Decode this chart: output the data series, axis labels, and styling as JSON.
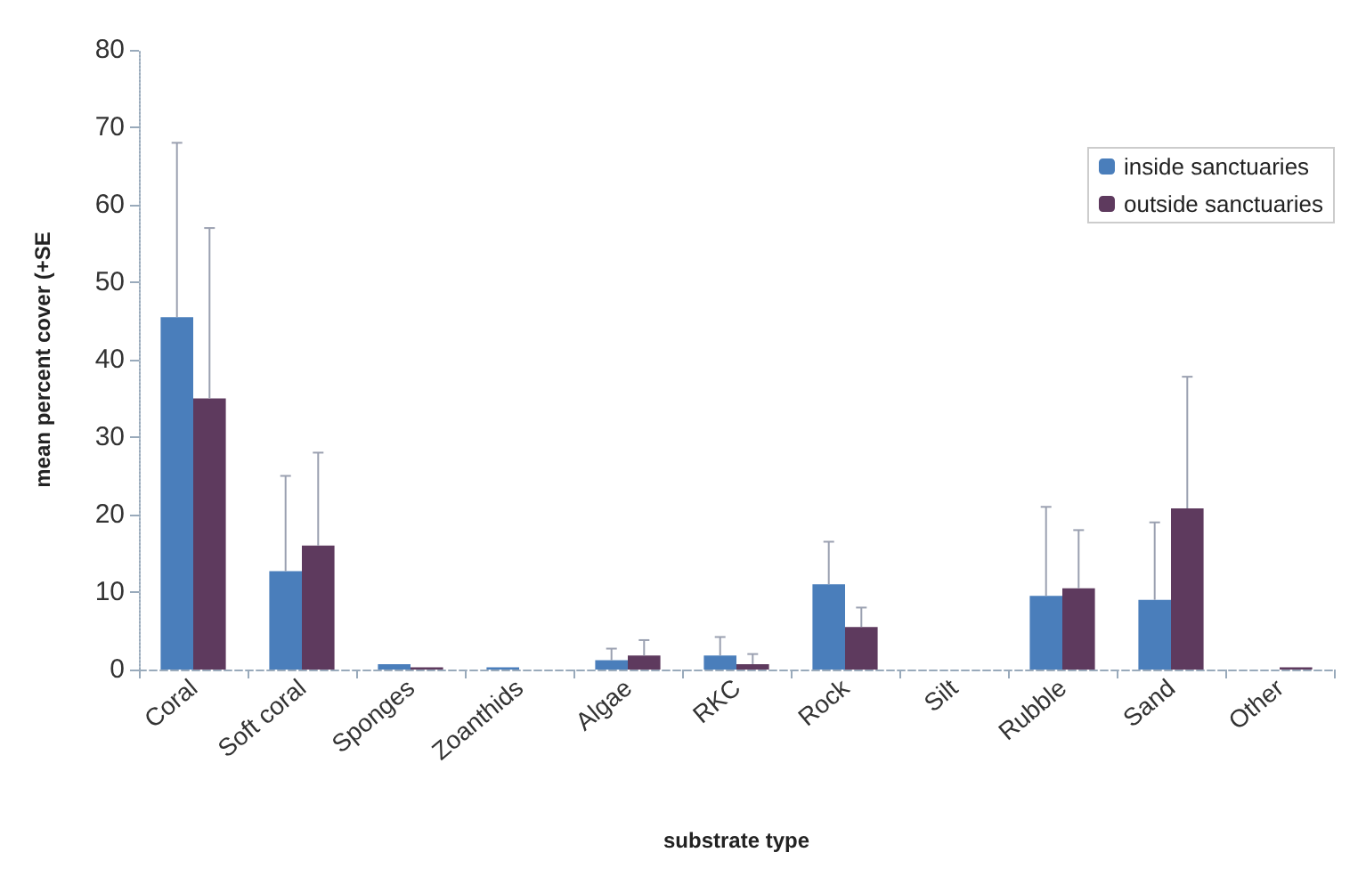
{
  "chart_data": {
    "type": "bar",
    "xlabel": "substrate type",
    "ylabel": "mean percent cover (+SE",
    "categories": [
      "Coral",
      "Soft coral",
      "Sponges",
      "Zoanthids",
      "Algae",
      "RKC",
      "Rock",
      "Silt",
      "Rubble",
      "Sand",
      "Other"
    ],
    "series": [
      {
        "name": "inside sanctuaries",
        "color": "#4a7ebb",
        "values": [
          45.5,
          12.7,
          0.7,
          0.3,
          1.2,
          1.8,
          11,
          0,
          9.5,
          9,
          0
        ],
        "errors": [
          [
            45.5,
            68
          ],
          [
            12.7,
            25
          ],
          null,
          null,
          [
            1.2,
            2.7
          ],
          [
            1.8,
            4.2
          ],
          [
            11,
            16.5
          ],
          null,
          [
            9.5,
            21
          ],
          [
            9,
            19
          ],
          null
        ]
      },
      {
        "name": "outside sanctuaries",
        "color": "#5e3a5e",
        "values": [
          35,
          16,
          0.3,
          0,
          1.8,
          0.7,
          5.5,
          0,
          10.5,
          20.8,
          0.3
        ],
        "errors": [
          [
            35,
            57
          ],
          [
            16,
            28
          ],
          null,
          null,
          [
            1.8,
            3.8
          ],
          [
            0.7,
            2
          ],
          [
            5.5,
            8
          ],
          null,
          [
            10.5,
            18
          ],
          [
            20.8,
            37.8
          ],
          null
        ]
      }
    ],
    "ylim": [
      0,
      80
    ],
    "yticks": [
      0,
      10,
      20,
      30,
      40,
      50,
      60,
      70,
      80
    ],
    "grid": false,
    "legend": "top right"
  }
}
